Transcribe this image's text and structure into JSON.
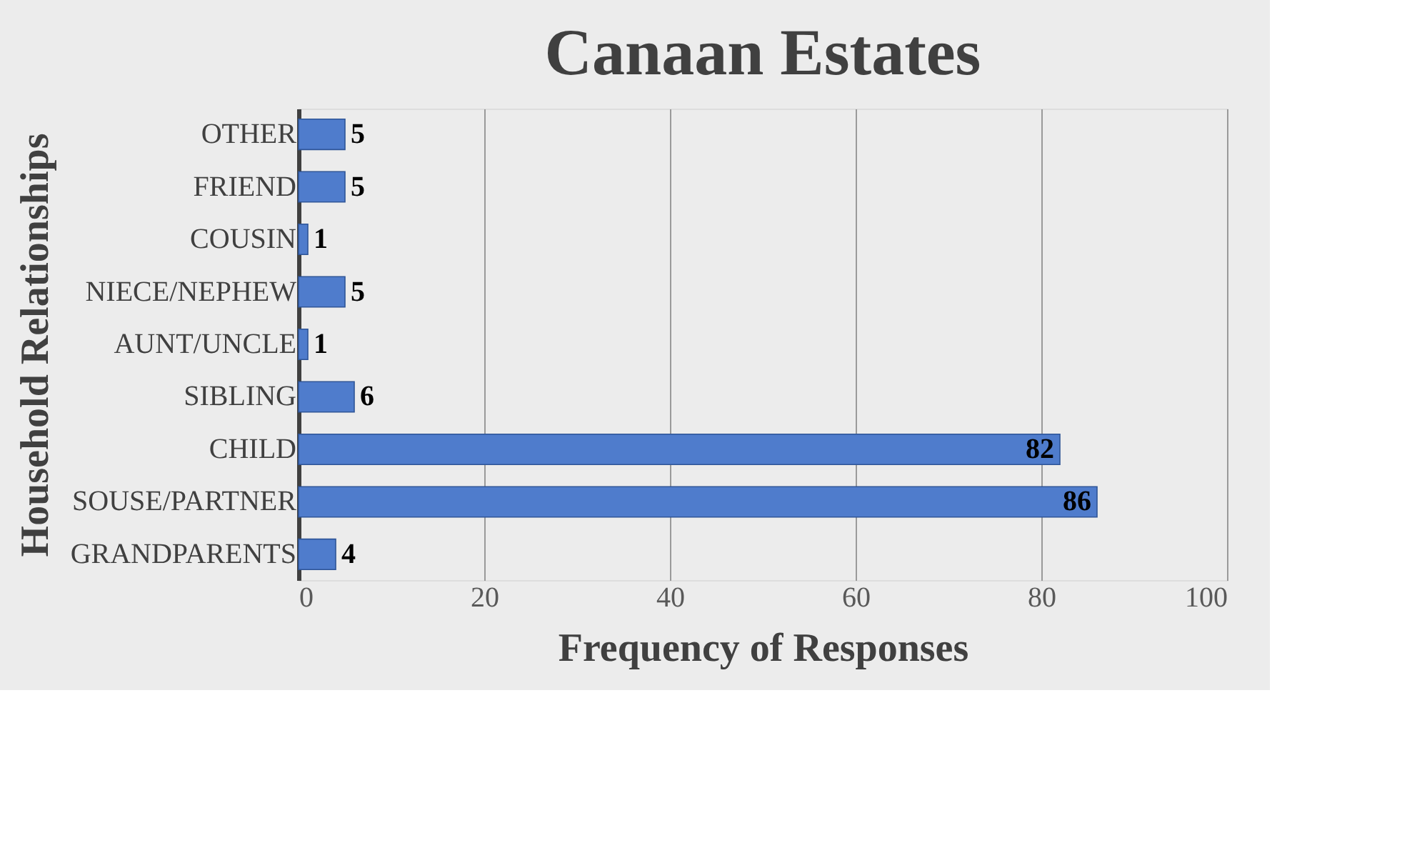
{
  "chart_data": {
    "type": "bar",
    "orientation": "horizontal",
    "title": "Canaan Estates",
    "xlabel": "Frequency of Responses",
    "ylabel": "Household Relationships",
    "categories": [
      "OTHER",
      "FRIEND",
      "COUSIN",
      "NIECE/NEPHEW",
      "AUNT/UNCLE",
      "SIBLING",
      "CHILD",
      "SOUSE/PARTNER",
      "GRANDPARENTS"
    ],
    "values": [
      5,
      5,
      1,
      5,
      1,
      6,
      82,
      86,
      4
    ],
    "color": "#4f7ccc",
    "xlim": [
      0,
      100
    ],
    "xticks": [
      0,
      20,
      40,
      60,
      80,
      100
    ],
    "grid": "x",
    "data_labels": true
  }
}
